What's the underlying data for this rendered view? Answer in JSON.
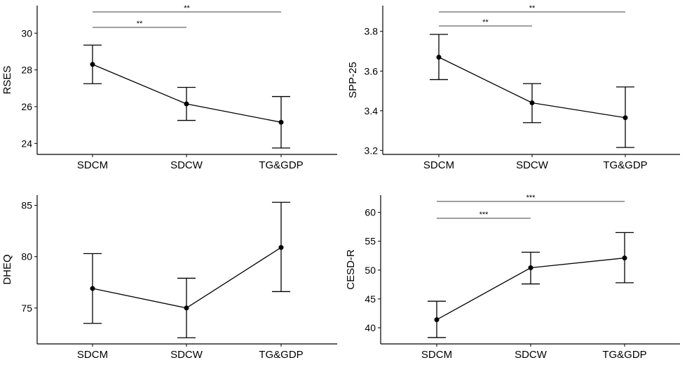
{
  "chart_data": [
    {
      "type": "line",
      "categories": [
        "SDCM",
        "SDCW",
        "TG&GDP"
      ],
      "ylabel": "RSES",
      "ylim": [
        23.4,
        31.5
      ],
      "yticks": [
        24,
        26,
        28,
        30
      ],
      "series": [
        {
          "values": [
            28.3,
            26.15,
            25.15
          ],
          "lower": [
            27.25,
            25.25,
            23.75
          ],
          "upper": [
            29.35,
            27.05,
            26.55
          ]
        }
      ],
      "significance": [
        {
          "from": 0,
          "to": 1,
          "label": "**"
        },
        {
          "from": 0,
          "to": 2,
          "label": "**"
        }
      ]
    },
    {
      "type": "line",
      "categories": [
        "SDCM",
        "SDCW",
        "TG&GDP"
      ],
      "ylabel": "SPP-25",
      "ylim": [
        3.18,
        3.93
      ],
      "yticks": [
        3.2,
        3.4,
        3.6,
        3.8
      ],
      "series": [
        {
          "values": [
            3.67,
            3.44,
            3.365
          ],
          "lower": [
            3.557,
            3.34,
            3.215
          ],
          "upper": [
            3.785,
            3.537,
            3.52
          ]
        }
      ],
      "significance": [
        {
          "from": 0,
          "to": 1,
          "label": "**"
        },
        {
          "from": 0,
          "to": 2,
          "label": "**"
        }
      ]
    },
    {
      "type": "line",
      "categories": [
        "SDCM",
        "SDCW",
        "TG&GDP"
      ],
      "ylabel": "DHEQ",
      "ylim": [
        71.5,
        86
      ],
      "yticks": [
        75,
        80,
        85
      ],
      "series": [
        {
          "values": [
            76.9,
            75.0,
            80.9
          ],
          "lower": [
            73.5,
            72.1,
            76.6
          ],
          "upper": [
            80.3,
            77.9,
            85.3
          ]
        }
      ],
      "significance": []
    },
    {
      "type": "line",
      "categories": [
        "SDCM",
        "SDCW",
        "TG&GDP"
      ],
      "ylabel": "CESD-R",
      "ylim": [
        37.2,
        63
      ],
      "yticks": [
        40,
        45,
        50,
        55,
        60
      ],
      "series": [
        {
          "values": [
            41.4,
            50.4,
            52.1
          ],
          "lower": [
            38.3,
            47.6,
            47.8
          ],
          "upper": [
            44.6,
            53.1,
            56.5
          ]
        }
      ],
      "significance": [
        {
          "from": 0,
          "to": 1,
          "label": "***"
        },
        {
          "from": 0,
          "to": 2,
          "label": "***"
        }
      ]
    }
  ]
}
